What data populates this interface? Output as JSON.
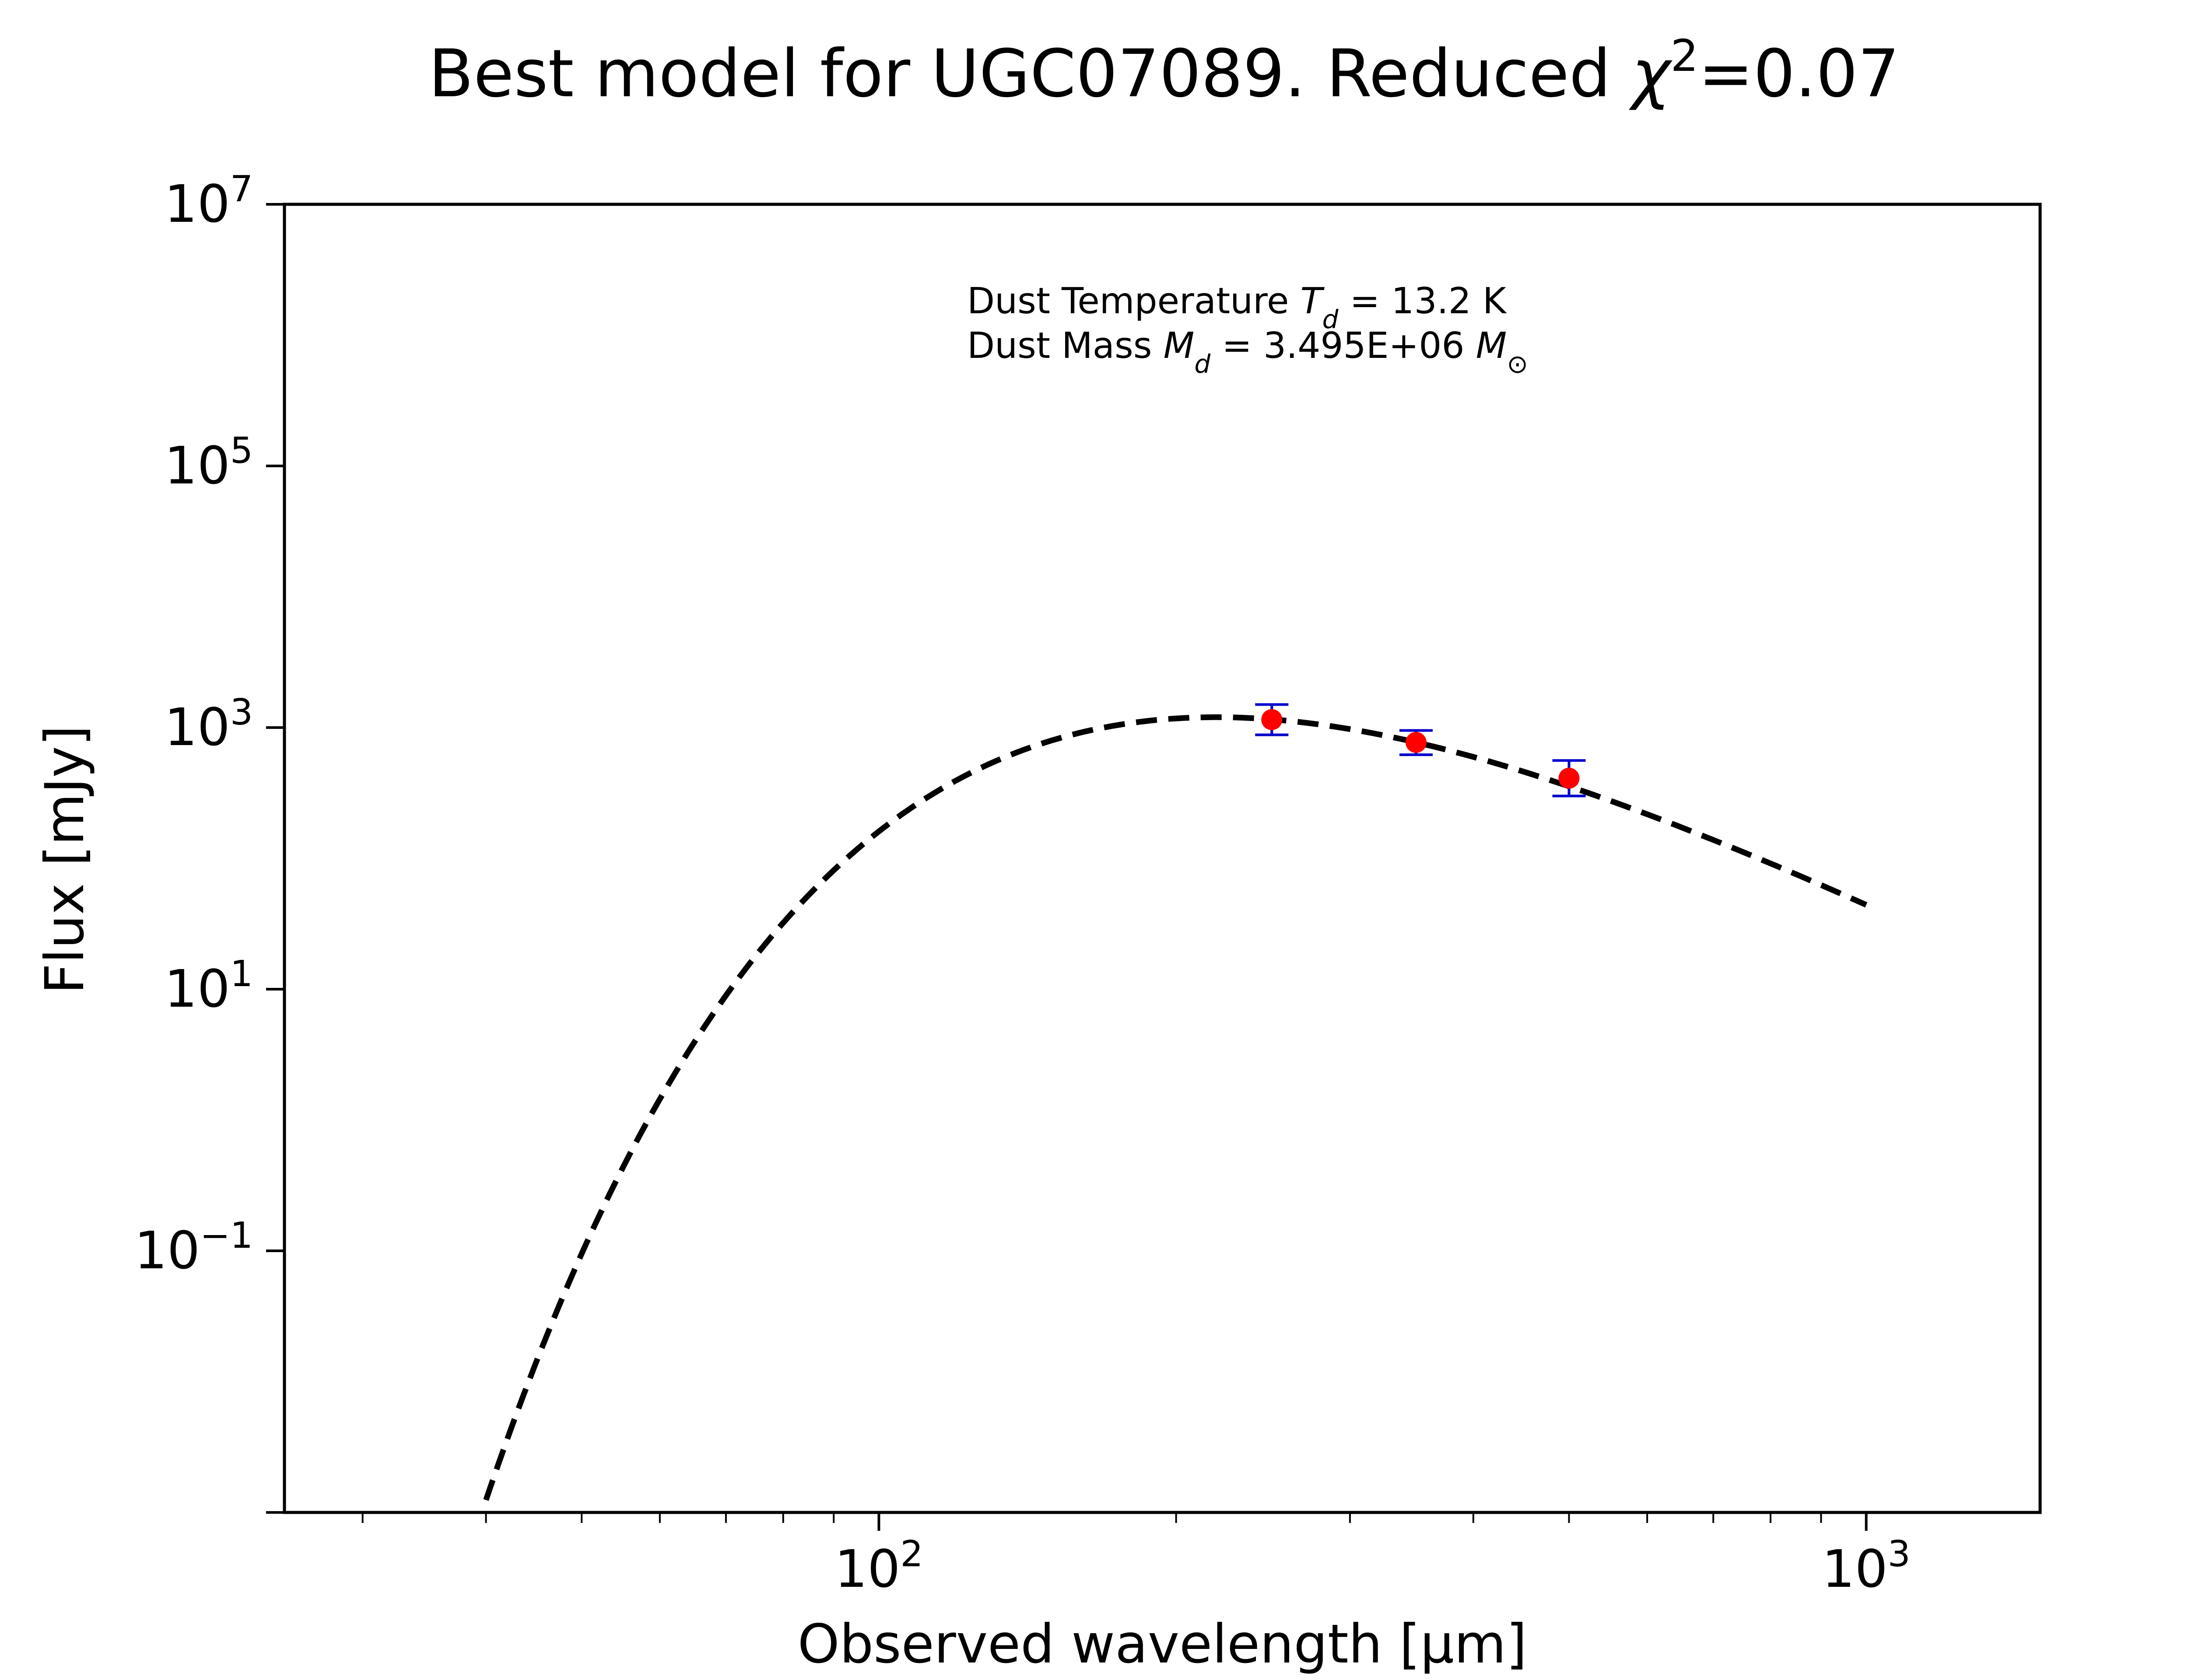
{
  "title": {
    "prefix": "Best model for UGC07089. Reduced ",
    "chi": "χ",
    "sup": "2",
    "suffix": "=0.07"
  },
  "annotation": {
    "line1_prefix": "Dust Temperature ",
    "line1_symbol": "T",
    "line1_sub": "d",
    "line1_suffix": " = 13.2 K",
    "line2_prefix": "Dust Mass ",
    "line2_symbol": "M",
    "line2_sub": "d",
    "line2_mid": " = 3.495E+06 ",
    "line2_unit": "M",
    "line2_unit_sub": "⊙"
  },
  "chart_data": {
    "type": "scatter",
    "xlabel": "Observed wavelength [μm]",
    "ylabel": "Flux [mJy]",
    "xscale": "log",
    "yscale": "log",
    "xlim": [
      25,
      1500
    ],
    "ylim": [
      0.001,
      10000000
    ],
    "grid": false,
    "x_major_ticks": [
      {
        "value": 100,
        "base": "10",
        "exp": "2"
      },
      {
        "value": 1000,
        "base": "10",
        "exp": "3"
      }
    ],
    "y_major_ticks": [
      {
        "value": 0.1,
        "base": "10",
        "exp": "−1"
      },
      {
        "value": 10,
        "base": "10",
        "exp": "1"
      },
      {
        "value": 1000,
        "base": "10",
        "exp": "3"
      },
      {
        "value": 100000,
        "base": "10",
        "exp": "5"
      },
      {
        "value": 10000000,
        "base": "10",
        "exp": "7"
      }
    ],
    "observations": {
      "marker_color": "#ff0000",
      "errorbar_color": "#0000cc",
      "points": [
        {
          "x": 250,
          "y": 1150,
          "y_err_low": 880,
          "y_err_high": 1500
        },
        {
          "x": 350,
          "y": 770,
          "y_err_low": 620,
          "y_err_high": 950
        },
        {
          "x": 500,
          "y": 410,
          "y_err_low": 300,
          "y_err_high": 560
        }
      ]
    },
    "model": {
      "style": "dashed",
      "color": "#000000",
      "temperature_K": 13.2,
      "x_range": [
        40,
        1000
      ],
      "peak_flux": 1200
    }
  }
}
